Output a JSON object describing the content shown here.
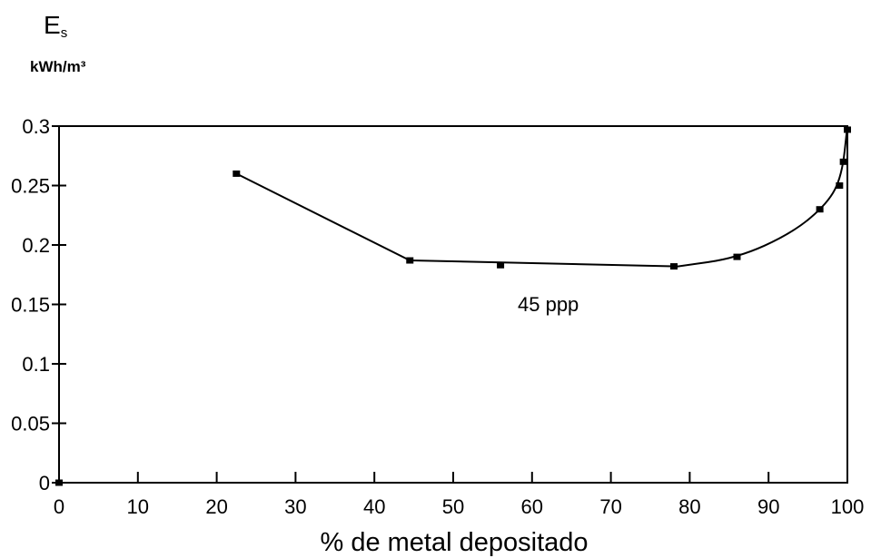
{
  "chart_data": {
    "type": "line",
    "ylabel_symbol": "E",
    "ylabel_subscript": "s",
    "ylabel_unit": "kWh/m³",
    "xlabel": "% de metal depositado",
    "annotation": "45 ppp",
    "xlim": [
      0,
      100
    ],
    "ylim": [
      0,
      0.3
    ],
    "xticks": [
      "0",
      "10",
      "20",
      "30",
      "40",
      "50",
      "60",
      "70",
      "80",
      "90",
      "100"
    ],
    "yticks": [
      "0",
      "0.05",
      "0.1",
      "0.15",
      "0.2",
      "0.25",
      "0.3"
    ],
    "grid": false,
    "series": [
      {
        "points": [
          {
            "x": 0,
            "y": 0
          },
          {
            "x": 22.5,
            "y": 0.26
          },
          {
            "x": 44.5,
            "y": 0.187
          },
          {
            "x": 56,
            "y": 0.183
          },
          {
            "x": 78,
            "y": 0.182
          },
          {
            "x": 86,
            "y": 0.19
          },
          {
            "x": 96.5,
            "y": 0.23
          },
          {
            "x": 99,
            "y": 0.25
          },
          {
            "x": 99.5,
            "y": 0.27
          },
          {
            "x": 100,
            "y": 0.297
          }
        ],
        "curve": [
          {
            "x": 22.5,
            "y": 0.26
          },
          {
            "x": 44.5,
            "y": 0.187
          },
          {
            "x": 78.5,
            "y": 0.182
          },
          {
            "x": 86,
            "y": 0.189
          },
          {
            "x": 93,
            "y": 0.21
          },
          {
            "x": 97.5,
            "y": 0.235
          },
          {
            "x": 99.3,
            "y": 0.258
          },
          {
            "x": 100,
            "y": 0.3
          }
        ]
      }
    ]
  }
}
